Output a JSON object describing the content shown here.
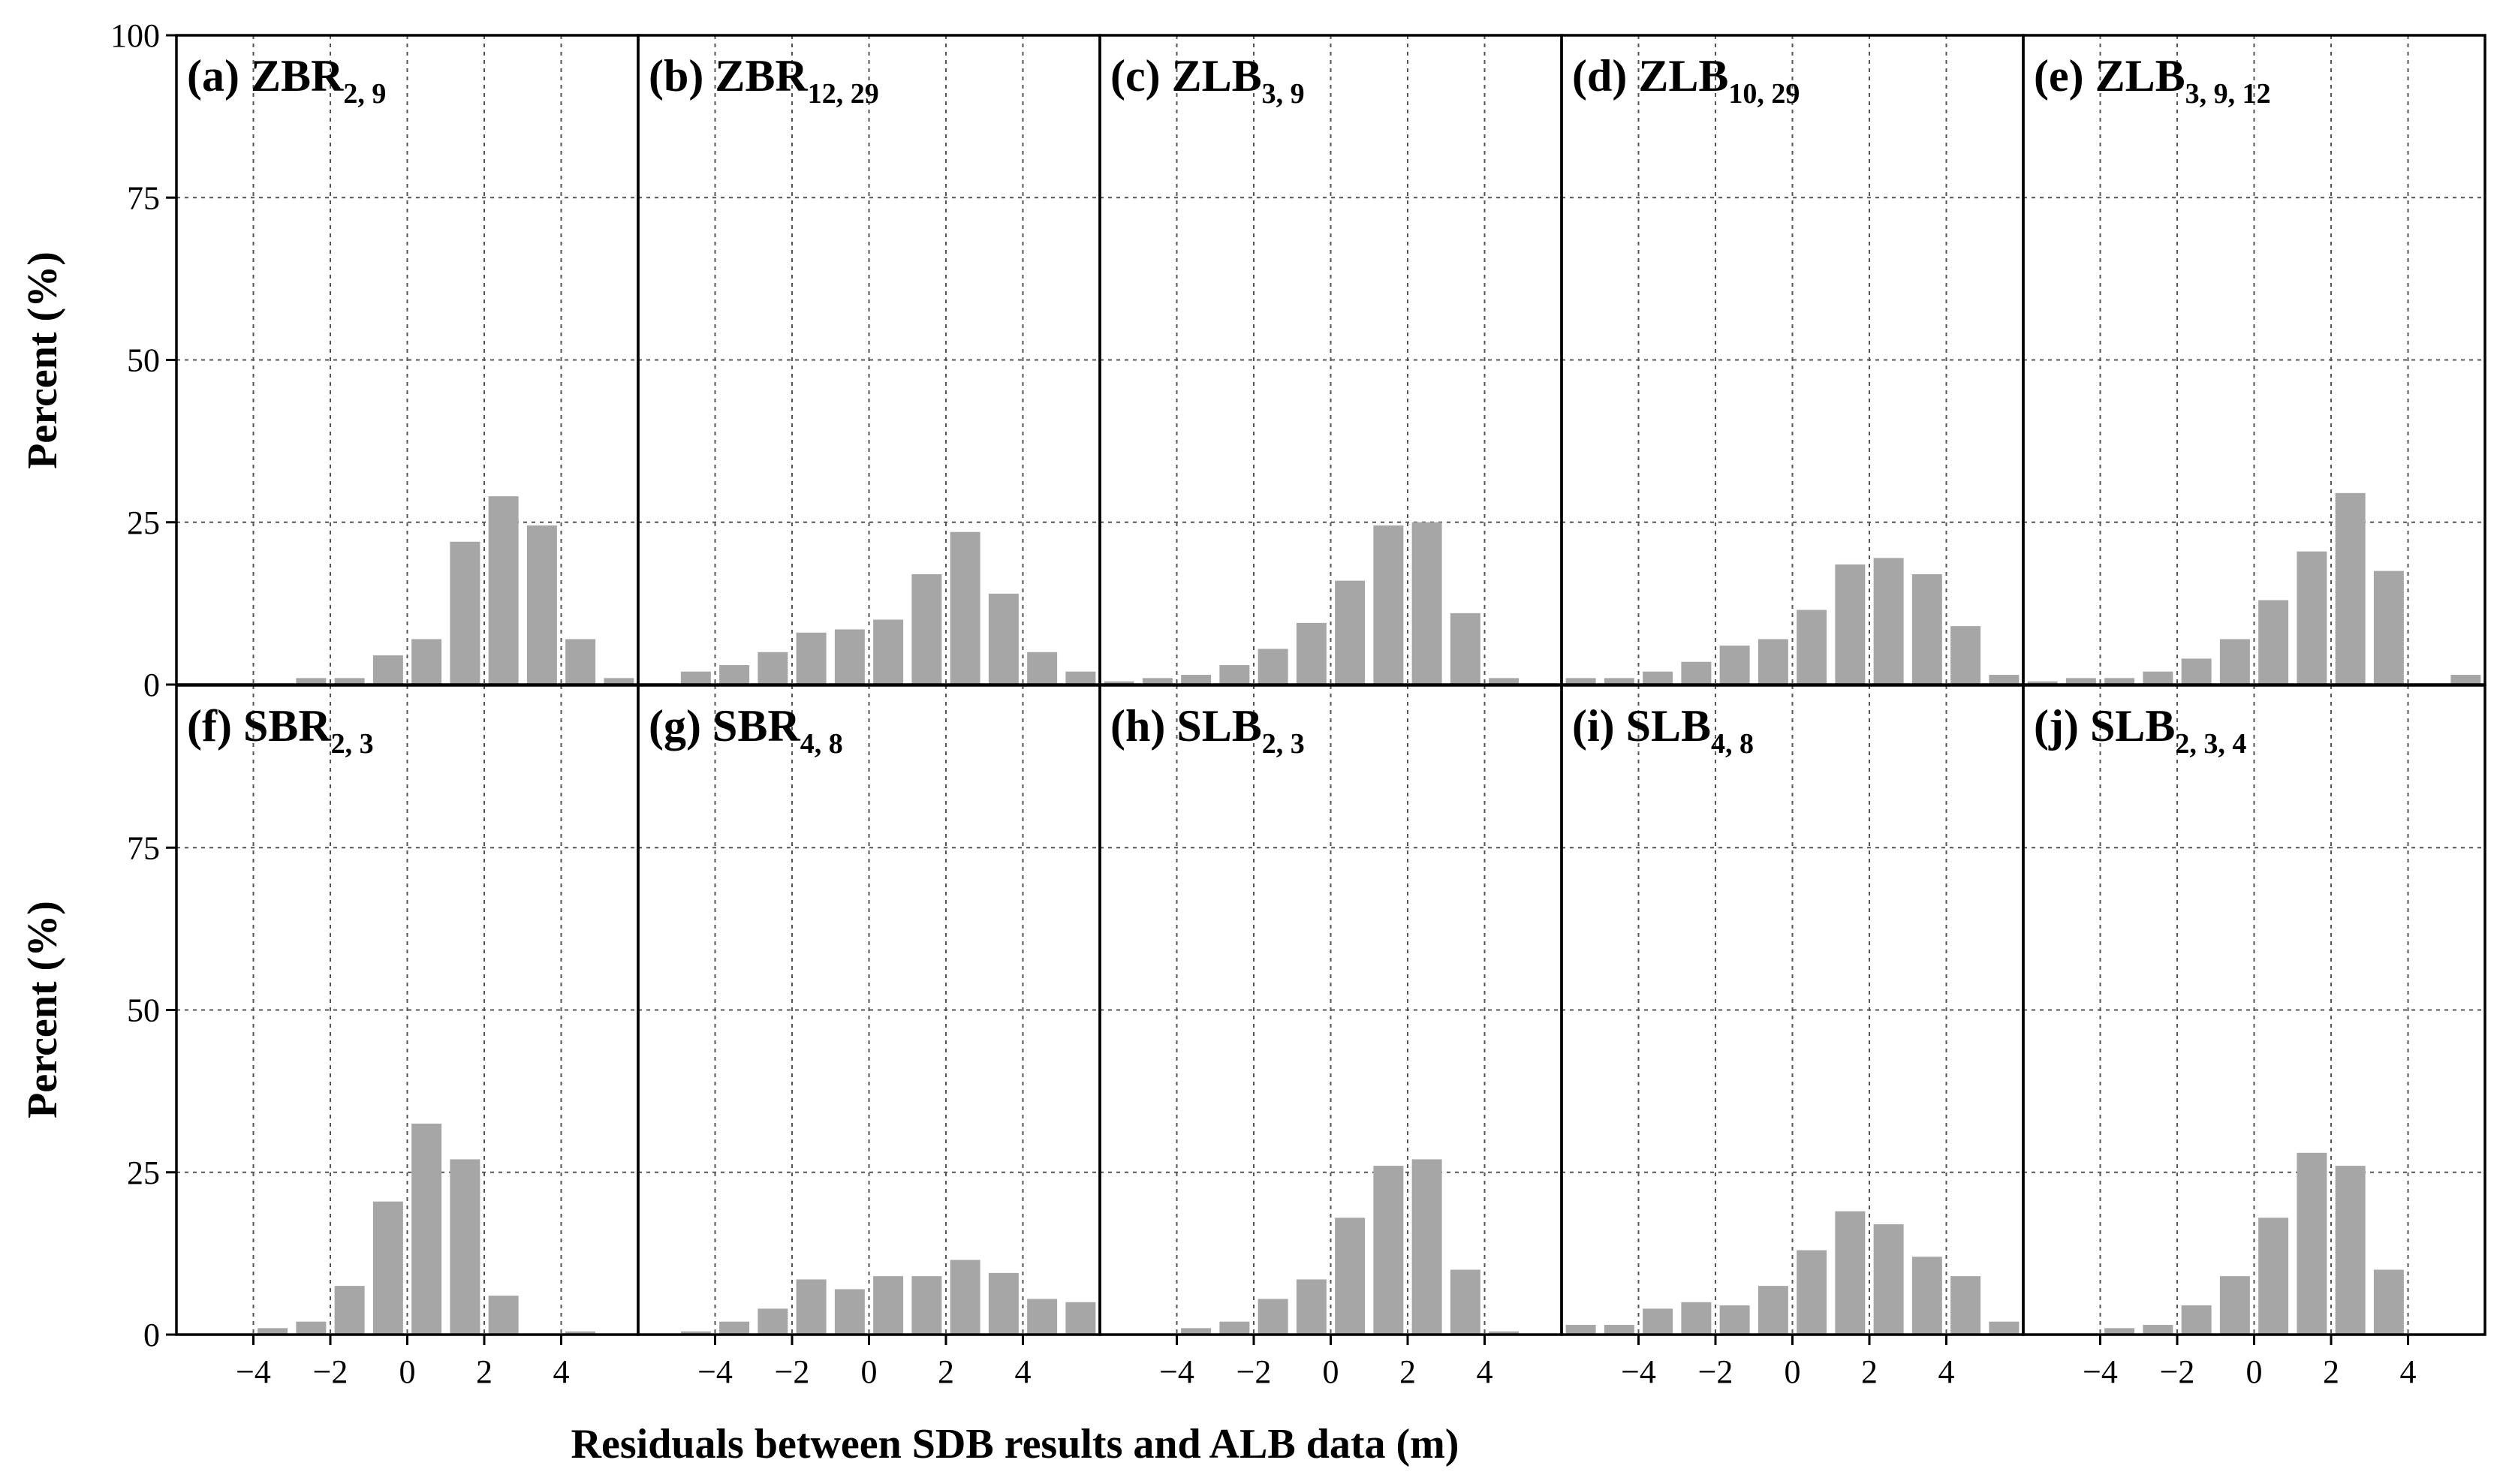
{
  "chart_data": {
    "type": "bar",
    "grid": true,
    "xlabel": "Residuals between SDB results and ALB data  (m)",
    "ylabel": "Percent (%)",
    "ylim": [
      0,
      100
    ],
    "xlim": [
      -6,
      6
    ],
    "yticks": [
      "0",
      "25",
      "50",
      "75",
      "100"
    ],
    "xticks": [
      "−4",
      "−2",
      "0",
      "2",
      "4"
    ],
    "xtick_values": [
      -4,
      -2,
      0,
      2,
      4
    ],
    "bin_centers": [
      -5.5,
      -4.5,
      -3.5,
      -2.5,
      -1.5,
      -0.5,
      0.5,
      1.5,
      2.5,
      3.5,
      4.5,
      5.5
    ],
    "panels": [
      {
        "id": "a",
        "label": "(a) ZBR",
        "subscript": "2, 9",
        "values": [
          0,
          0,
          0,
          1,
          1,
          4.5,
          7,
          22,
          29,
          24.5,
          7,
          1
        ]
      },
      {
        "id": "b",
        "label": "(b) ZBR",
        "subscript": "12, 29",
        "values": [
          0,
          2,
          3,
          5,
          8,
          8.5,
          10,
          17,
          23.5,
          14,
          5,
          2
        ]
      },
      {
        "id": "c",
        "label": "(c) ZLB",
        "subscript": "3, 9",
        "values": [
          0.5,
          1,
          1.5,
          3,
          5.5,
          9.5,
          16,
          24.5,
          25,
          11,
          1,
          0
        ]
      },
      {
        "id": "d",
        "label": "(d) ZLB",
        "subscript": "10, 29",
        "values": [
          1,
          1,
          2,
          3.5,
          6,
          7,
          11.5,
          18.5,
          19.5,
          17,
          9,
          1.5
        ]
      },
      {
        "id": "e",
        "label": "(e) ZLB",
        "subscript": "3, 9, 12",
        "values": [
          0.5,
          1,
          1,
          2,
          4,
          7,
          13,
          20.5,
          29.5,
          17.5,
          0,
          1.5
        ]
      },
      {
        "id": "f",
        "label": "(f) SBR",
        "subscript": "2, 3",
        "values": [
          0,
          0,
          1,
          2,
          7.5,
          20.5,
          32.5,
          27,
          6,
          0,
          0.5,
          0
        ]
      },
      {
        "id": "g",
        "label": "(g) SBR",
        "subscript": "4, 8",
        "values": [
          0,
          0.5,
          2,
          4,
          8.5,
          7,
          9,
          9,
          11.5,
          9.5,
          5.5,
          5
        ]
      },
      {
        "id": "h",
        "label": "(h) SLB",
        "subscript": "2, 3",
        "values": [
          0,
          0,
          1,
          2,
          5.5,
          8.5,
          18,
          26,
          27,
          10,
          0.5,
          0
        ]
      },
      {
        "id": "i",
        "label": "(i) SLB",
        "subscript": "4, 8",
        "values": [
          1.5,
          1.5,
          4,
          5,
          4.5,
          7.5,
          13,
          19,
          17,
          12,
          9,
          2
        ]
      },
      {
        "id": "j",
        "label": "(j) SLB",
        "subscript": "2, 3, 4",
        "values": [
          0,
          0,
          1,
          1.5,
          4.5,
          9,
          18,
          28,
          26,
          10,
          0,
          0
        ]
      }
    ]
  }
}
